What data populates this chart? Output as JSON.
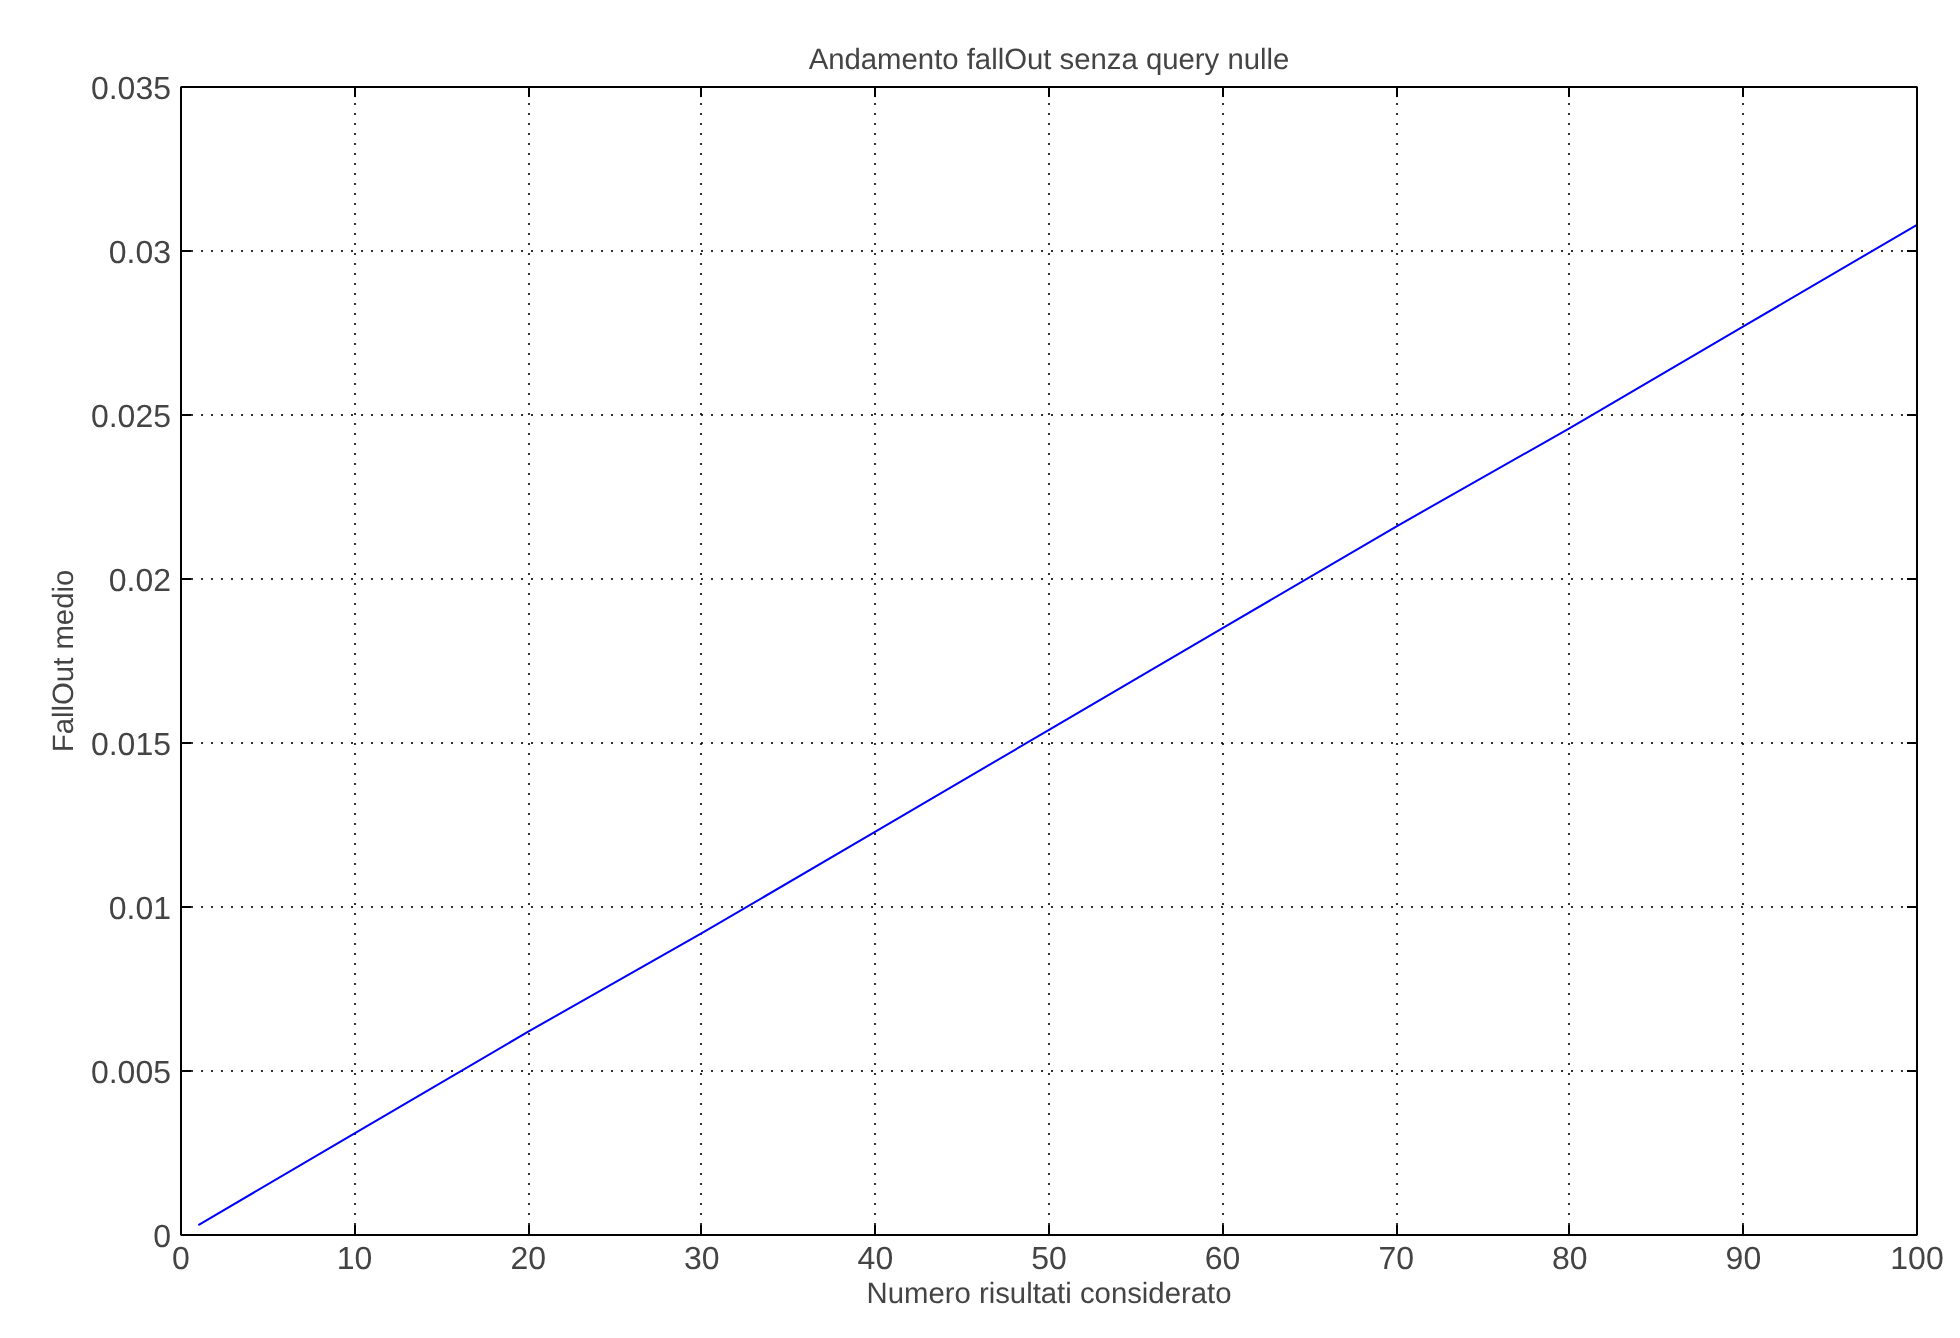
{
  "chart_data": {
    "type": "line",
    "title": "Andamento fallOut senza query nulle",
    "xlabel": "Numero risultati considerato",
    "ylabel": "FallOut medio",
    "x": [
      1,
      10,
      20,
      30,
      40,
      50,
      60,
      70,
      80,
      90,
      100
    ],
    "series": [
      {
        "color": "#0000ff",
        "values": [
          0.0003,
          0.0031,
          0.0062,
          0.0092,
          0.0123,
          0.0154,
          0.0185,
          0.0216,
          0.0246,
          0.0277,
          0.0308
        ]
      }
    ],
    "xlim": [
      0,
      100
    ],
    "ylim": [
      0,
      0.035
    ],
    "xticks": [
      0,
      10,
      20,
      30,
      40,
      50,
      60,
      70,
      80,
      90,
      100
    ],
    "yticks": [
      0,
      0.005,
      0.01,
      0.015,
      0.02,
      0.025,
      0.03,
      0.035
    ],
    "grid": true,
    "line_style": "solid",
    "marker": "none"
  }
}
